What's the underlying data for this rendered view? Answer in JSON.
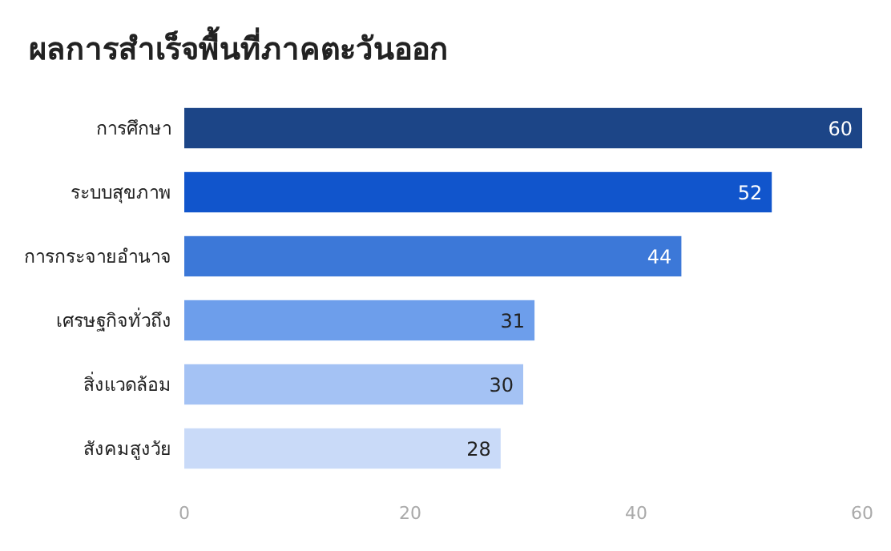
{
  "chart_data": {
    "type": "bar",
    "orientation": "horizontal",
    "title": "ผลการสำเร็จพื้นที่ภาคตะวันออก",
    "categories": [
      "การศึกษา",
      "ระบบสุขภาพ",
      "การกระจายอำนาจ",
      "เศรษฐกิจทั่วถึง",
      "สิ่งแวดล้อม",
      "สังคมสูงวัย"
    ],
    "values": [
      60,
      52,
      44,
      31,
      30,
      28
    ],
    "colors": [
      "#1c4587",
      "#1155cc",
      "#3c78d8",
      "#6d9eeb",
      "#a4c2f4",
      "#c9daf8"
    ],
    "xlim": [
      0,
      60
    ],
    "xticks": [
      0,
      20,
      40,
      60
    ],
    "data_labels": true
  }
}
